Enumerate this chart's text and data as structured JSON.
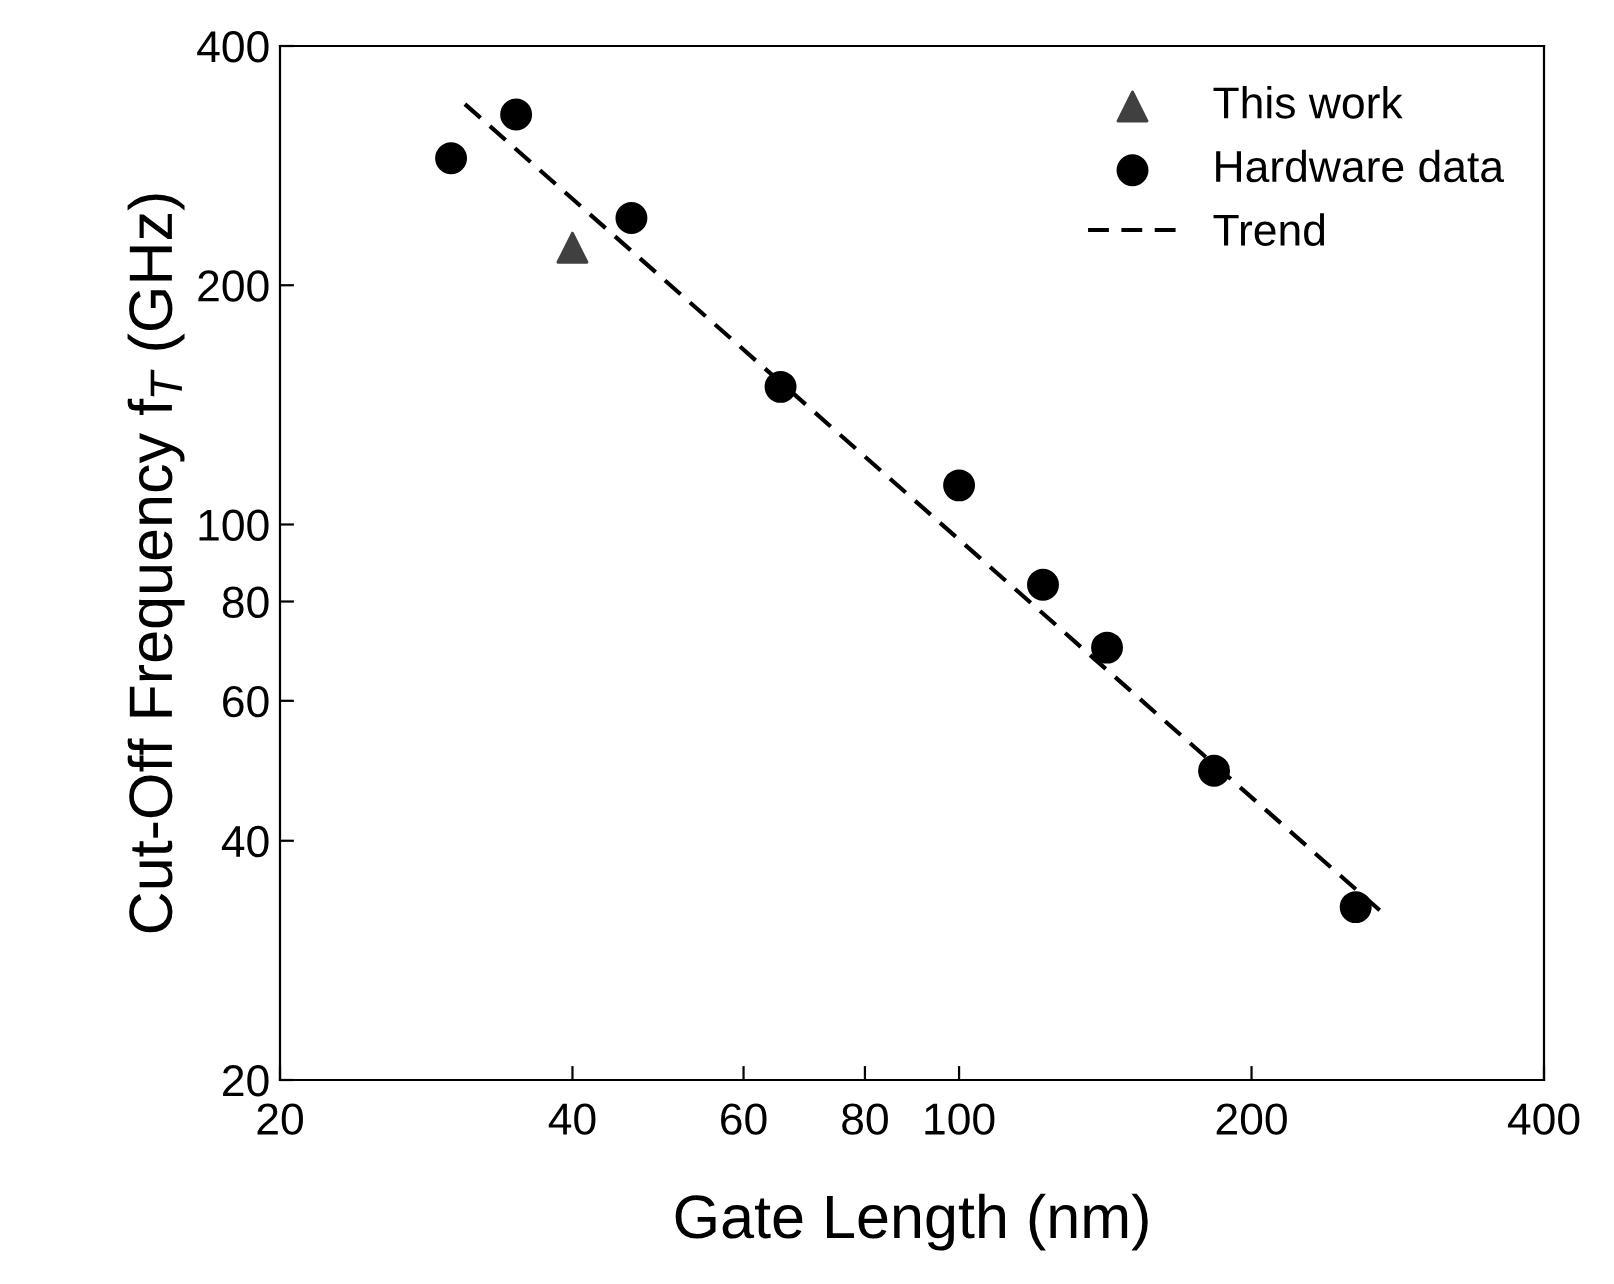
{
  "chart_data": {
    "type": "scatter",
    "xlabel": "Gate Length (nm)",
    "ylabel": "Cut-Off Frequency f$_{T}$ (GHz)",
    "log": "xy",
    "xlim": [
      20,
      400
    ],
    "ylim": [
      20,
      400
    ],
    "xticks": [
      20,
      40,
      60,
      80,
      100,
      200,
      400
    ],
    "yticks": [
      20,
      40,
      60,
      80,
      100,
      200,
      400
    ],
    "grid": false,
    "legend": "top right",
    "series": [
      {
        "name": "This work",
        "marker": "triangle",
        "color": "#404040",
        "x": [
          40
        ],
        "values": [
          223
        ]
      },
      {
        "name": "Hardware data",
        "marker": "circle",
        "color": "#000000",
        "x": [
          30,
          35,
          46,
          65.5,
          100,
          122,
          142,
          183,
          256
        ],
        "values": [
          289,
          328,
          243,
          149,
          112,
          84,
          70,
          49,
          33
        ]
      },
      {
        "name": "Trend",
        "type": "line",
        "line_style": "dashed",
        "marker": "none",
        "color": "#000000",
        "x": [
          31,
          271
        ],
        "values": [
          338,
          32.7
        ]
      }
    ]
  }
}
